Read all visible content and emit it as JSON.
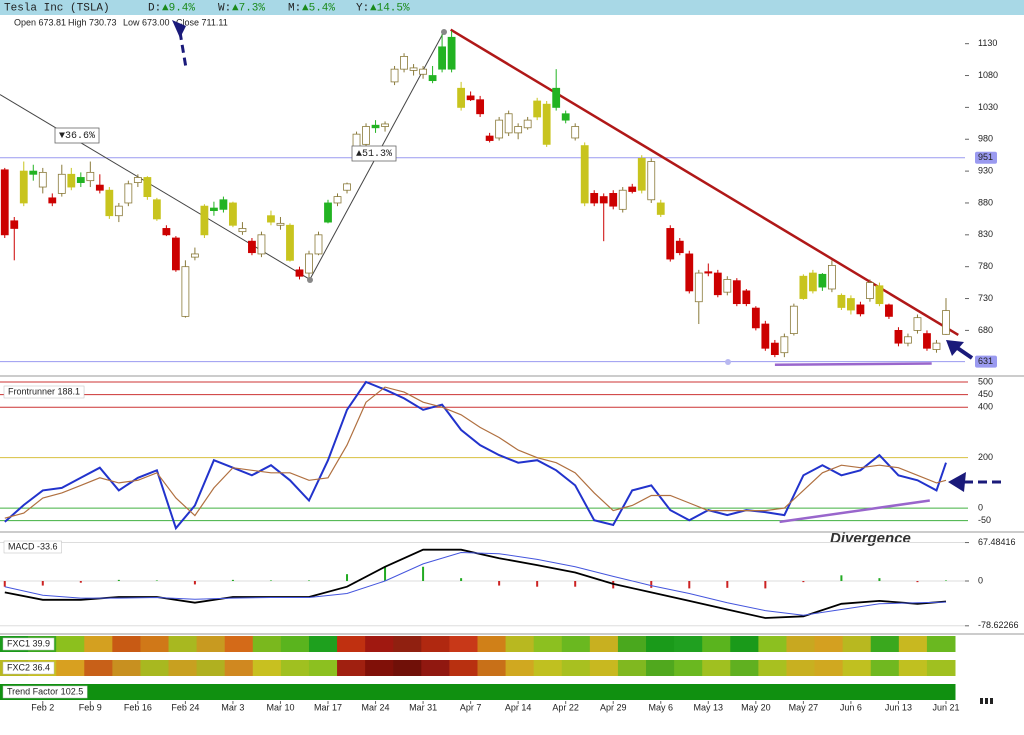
{
  "header": {
    "title": "Tesla Inc (TSLA)",
    "changes": [
      {
        "label": "D:",
        "value": "▲9.4%"
      },
      {
        "label": "W:",
        "value": "▲7.3%"
      },
      {
        "label": "M:",
        "value": "▲5.4%"
      },
      {
        "label": "Y:",
        "value": "▲14.5%"
      }
    ],
    "ohlc": [
      "Open 673.81",
      "High 730.73",
      "Low 673.00",
      "Close 711.11"
    ]
  },
  "chart_data": [
    {
      "type": "candlestick",
      "open": [
        932,
        852,
        880,
        925,
        905,
        888,
        895,
        905,
        912,
        915,
        908,
        900,
        860,
        880,
        912,
        920,
        885,
        840,
        825,
        780,
        795,
        830,
        868,
        870,
        880,
        840,
        820,
        800,
        850,
        845,
        845,
        775,
        770,
        800,
        850,
        880,
        900,
        960,
        972,
        998,
        1000,
        1070,
        1090,
        1088,
        1090,
        1080,
        1090,
        1140,
        1060,
        1048,
        1042,
        985,
        982,
        990,
        990,
        998,
        1015,
        1035,
        1060,
        1020,
        1000,
        970,
        895,
        890,
        895,
        870,
        898,
        950,
        945,
        880,
        840,
        820,
        800,
        725,
        770,
        770,
        740,
        758,
        742,
        715,
        690,
        660,
        645,
        675,
        730,
        742,
        768,
        745,
        735,
        730,
        720,
        730,
        750,
        720,
        680,
        660,
        680,
        675,
        650,
        673.81
      ],
      "high": [
        935,
        858,
        945,
        940,
        935,
        895,
        940,
        935,
        928,
        945,
        925,
        905,
        880,
        915,
        925,
        922,
        888,
        845,
        828,
        790,
        810,
        878,
        882,
        890,
        882,
        850,
        825,
        835,
        868,
        858,
        848,
        780,
        805,
        835,
        885,
        895,
        912,
        992,
        1005,
        1010,
        1008,
        1095,
        1115,
        1098,
        1095,
        1095,
        1145,
        1150,
        1070,
        1055,
        1048,
        990,
        1015,
        1025,
        1005,
        1015,
        1045,
        1040,
        1090,
        1025,
        1005,
        975,
        900,
        895,
        900,
        905,
        910,
        955,
        950,
        885,
        845,
        825,
        805,
        775,
        785,
        775,
        765,
        762,
        745,
        718,
        695,
        665,
        675,
        722,
        768,
        775,
        770,
        790,
        738,
        735,
        725,
        760,
        755,
        722,
        685,
        675,
        705,
        680,
        665,
        730.73
      ],
      "low": [
        825,
        790,
        875,
        915,
        895,
        875,
        890,
        900,
        905,
        905,
        895,
        855,
        850,
        875,
        905,
        885,
        852,
        828,
        772,
        700,
        790,
        825,
        860,
        865,
        842,
        830,
        798,
        795,
        845,
        838,
        788,
        760,
        760,
        798,
        848,
        875,
        895,
        955,
        968,
        990,
        992,
        1065,
        1085,
        1080,
        1075,
        1068,
        1085,
        1085,
        1025,
        1040,
        1015,
        975,
        978,
        985,
        980,
        995,
        1010,
        968,
        1025,
        1005,
        978,
        875,
        875,
        820,
        870,
        865,
        895,
        895,
        880,
        858,
        788,
        798,
        738,
        690,
        765,
        732,
        735,
        718,
        718,
        680,
        648,
        638,
        638,
        672,
        728,
        738,
        742,
        740,
        712,
        705,
        702,
        725,
        718,
        698,
        655,
        655,
        675,
        648,
        645,
        673.0
      ],
      "close": [
        830,
        840,
        930,
        930,
        928,
        880,
        925,
        925,
        920,
        928,
        900,
        860,
        875,
        910,
        920,
        890,
        855,
        830,
        775,
        702,
        800,
        875,
        872,
        885,
        845,
        835,
        802,
        830,
        860,
        848,
        790,
        765,
        800,
        830,
        880,
        890,
        910,
        988,
        1000,
        1002,
        1004,
        1090,
        1110,
        1092,
        1082,
        1072,
        1125,
        1090,
        1030,
        1042,
        1020,
        978,
        1010,
        1020,
        1000,
        1010,
        1040,
        972,
        1030,
        1010,
        982,
        880,
        880,
        880,
        875,
        900,
        905,
        900,
        885,
        862,
        792,
        802,
        742,
        770,
        772,
        736,
        760,
        722,
        722,
        684,
        652,
        642,
        670,
        718,
        765,
        770,
        748,
        782,
        716,
        712,
        706,
        755,
        722,
        702,
        660,
        670,
        700,
        652,
        660,
        711.11
      ],
      "colors": [
        "#cc0000",
        "#cc0000",
        "#c8c41e",
        "#22b322",
        "#ffffff",
        "#cc0000",
        "#ffffff",
        "#c8c41e",
        "#22b322",
        "#ffffff",
        "#cc0000",
        "#c8c41e",
        "#ffffff",
        "#ffffff",
        "#ffffff",
        "#c8c41e",
        "#c8c41e",
        "#cc0000",
        "#cc0000",
        "#ffffff",
        "#ffffff",
        "#c8c41e",
        "#22b322",
        "#22b322",
        "#c8c41e",
        "#ffffff",
        "#cc0000",
        "#ffffff",
        "#c8c41e",
        "#ffffff",
        "#c8c41e",
        "#cc0000",
        "#ffffff",
        "#ffffff",
        "#22b322",
        "#ffffff",
        "#ffffff",
        "#ffffff",
        "#ffffff",
        "#22b322",
        "#ffffff",
        "#ffffff",
        "#ffffff",
        "#ffffff",
        "#ffffff",
        "#22b322",
        "#22b322",
        "#22b322",
        "#c8c41e",
        "#cc0000",
        "#cc0000",
        "#cc0000",
        "#ffffff",
        "#ffffff",
        "#ffffff",
        "#ffffff",
        "#c8c41e",
        "#c8c41e",
        "#22b322",
        "#22b322",
        "#ffffff",
        "#c8c41e",
        "#cc0000",
        "#cc0000",
        "#cc0000",
        "#ffffff",
        "#cc0000",
        "#c8c41e",
        "#ffffff",
        "#c8c41e",
        "#cc0000",
        "#cc0000",
        "#cc0000",
        "#ffffff",
        "#cc0000",
        "#cc0000",
        "#ffffff",
        "#cc0000",
        "#cc0000",
        "#cc0000",
        "#cc0000",
        "#cc0000",
        "#ffffff",
        "#ffffff",
        "#c8c41e",
        "#c8c41e",
        "#22b322",
        "#ffffff",
        "#c8c41e",
        "#c8c41e",
        "#cc0000",
        "#ffffff",
        "#c8c41e",
        "#cc0000",
        "#cc0000",
        "#ffffff",
        "#ffffff",
        "#cc0000",
        "#ffffff",
        "#ffffff"
      ],
      "xlim": [
        -0.5,
        101
      ],
      "xticks": [
        {
          "value": 4,
          "label": "Feb 2"
        },
        {
          "value": 9,
          "label": "Feb 9"
        },
        {
          "value": 14,
          "label": "Feb 16"
        },
        {
          "value": 19,
          "label": "Feb 24"
        },
        {
          "value": 24,
          "label": "Mar 3"
        },
        {
          "value": 29,
          "label": "Mar 10"
        },
        {
          "value": 34,
          "label": "Mar 17"
        },
        {
          "value": 39,
          "label": "Mar 24"
        },
        {
          "value": 44,
          "label": "Mar 31"
        },
        {
          "value": 49,
          "label": "Apr 7"
        },
        {
          "value": 54,
          "label": "Apr 14"
        },
        {
          "value": 59,
          "label": "Apr 22"
        },
        {
          "value": 64,
          "label": "Apr 29"
        },
        {
          "value": 69,
          "label": "May 6"
        },
        {
          "value": 74,
          "label": "May 13"
        },
        {
          "value": 79,
          "label": "May 20"
        },
        {
          "value": 84,
          "label": "May 27"
        },
        {
          "value": 89,
          "label": "Jun 6"
        },
        {
          "value": 94,
          "label": "Jun 13"
        },
        {
          "value": 99,
          "label": "Jun 21"
        }
      ],
      "ylim": [
        610,
        1175
      ],
      "yticks": [
        1130,
        1080,
        1030,
        980,
        930,
        880,
        830,
        780,
        730,
        680
      ],
      "markers": [
        {
          "value": 951,
          "color": "#9a9af0"
        },
        {
          "value": 631,
          "color": "#9a9af0"
        }
      ],
      "lines": [
        {
          "color": "#b01818",
          "x": [
            46.9,
            100.3
          ],
          "y": [
            1152,
            673
          ]
        },
        {
          "color": "#444444",
          "x": [
            -0.5,
            32.1
          ],
          "y": [
            1050,
            760
          ]
        },
        {
          "color": "#444444",
          "x": [
            32.1,
            46.2
          ],
          "y": [
            760,
            1149
          ]
        },
        {
          "color": "#9966cc",
          "x": [
            81,
            97.5
          ],
          "y": [
            626,
            628
          ]
        }
      ],
      "annotations": [
        {
          "text": "▼36.6%",
          "color": "#cc2222"
        },
        {
          "text": "▲51.3%",
          "color": "#1a8a1a"
        }
      ]
    },
    {
      "type": "line",
      "title": "Frontrunner 188.1",
      "x": [
        0,
        2,
        4,
        6,
        8,
        10,
        12,
        14,
        16,
        18,
        20,
        22,
        24,
        26,
        28,
        30,
        32,
        34,
        36,
        38,
        40,
        42,
        44,
        46,
        48,
        50,
        52,
        54,
        56,
        58,
        60,
        62,
        64,
        66,
        68,
        70,
        72,
        74,
        76,
        78,
        80,
        82,
        84,
        86,
        88,
        90,
        92,
        94,
        96,
        98,
        99
      ],
      "series": [
        {
          "color": "#2233cc",
          "values": [
            -55,
            12,
            70,
            80,
            120,
            160,
            70,
            120,
            150,
            -80,
            10,
            190,
            160,
            130,
            170,
            110,
            30,
            190,
            390,
            500,
            470,
            435,
            390,
            410,
            310,
            250,
            210,
            180,
            190,
            150,
            90,
            -48,
            -67,
            70,
            90,
            -8,
            -48,
            -8,
            -28,
            -8,
            -16,
            -28,
            130,
            170,
            130,
            150,
            210,
            130,
            110,
            70,
            180
          ]
        },
        {
          "color": "#b07040",
          "values": [
            -40,
            -20,
            40,
            60,
            90,
            120,
            100,
            110,
            140,
            40,
            -30,
            80,
            160,
            150,
            140,
            140,
            110,
            120,
            250,
            420,
            480,
            460,
            420,
            400,
            370,
            320,
            280,
            230,
            200,
            180,
            140,
            60,
            -10,
            10,
            50,
            50,
            20,
            -10,
            -10,
            -10,
            -10,
            0,
            70,
            140,
            170,
            160,
            170,
            160,
            130,
            100,
            110
          ]
        }
      ],
      "xlim": [
        -0.5,
        101
      ],
      "ylim": [
        -87,
        516
      ],
      "yticks": [
        500,
        450,
        400,
        200,
        0,
        -50
      ],
      "level_colors": [
        "#cc3333",
        "#cc3333",
        "#cc3333",
        "#d8c040",
        "#40b040",
        "#40b040"
      ],
      "lines": [
        {
          "color": "#9966cc",
          "x": [
            81.5,
            97.3
          ],
          "y": [
            -55,
            30
          ]
        }
      ],
      "annotation": "Divergence"
    },
    {
      "type": "macd",
      "title": "MACD -33.6",
      "x": [
        0,
        4,
        8,
        12,
        16,
        20,
        24,
        28,
        32,
        36,
        40,
        44,
        48,
        52,
        56,
        60,
        64,
        68,
        72,
        76,
        80,
        84,
        88,
        92,
        96,
        99
      ],
      "series": [
        {
          "color": "#000000",
          "values": [
            -20,
            -33,
            -33,
            -28,
            -28,
            -38,
            -28,
            -28,
            -28,
            -10,
            25,
            55,
            55,
            40,
            28,
            15,
            -5,
            -20,
            -35,
            -50,
            -65,
            -62,
            -40,
            -35,
            -40,
            -36
          ]
        },
        {
          "color": "#4455dd",
          "values": [
            -10,
            -25,
            -30,
            -30,
            -29,
            -32,
            -30,
            -29,
            -29,
            -22,
            0,
            30,
            50,
            48,
            38,
            25,
            8,
            -8,
            -22,
            -38,
            -52,
            -60,
            -50,
            -40,
            -38,
            -37
          ]
        }
      ],
      "histogram": {
        "values": [
          -10,
          -8,
          -3,
          2,
          1,
          -6,
          2,
          1,
          1,
          12,
          25,
          25,
          5,
          -8,
          -10,
          -10,
          -13,
          -12,
          -13,
          -12,
          -13,
          -2,
          10,
          5,
          -2,
          1
        ],
        "colors": [
          "#22aa22",
          "#cc2222"
        ]
      },
      "xlim": [
        -0.5,
        101
      ],
      "ylim": [
        -89.5,
        82.5
      ],
      "yticks": [
        67.48416,
        0,
        -78.62266
      ]
    },
    {
      "type": "heatstrip",
      "title": "FXC1 39.9",
      "colors": [
        "#1a9a1a",
        "#3aa81e",
        "#8cc01e",
        "#d4a020",
        "#c85a14",
        "#d07818",
        "#a8b820",
        "#c89a20",
        "#d46a18",
        "#7ab81e",
        "#5ab41e",
        "#1ea01e",
        "#c03010",
        "#a01810",
        "#902010",
        "#b02810",
        "#c83818",
        "#d08018",
        "#b8b820",
        "#8cc020",
        "#6ab820",
        "#c8b020",
        "#4aa81e",
        "#1a9a1a",
        "#20a020",
        "#5ab41e",
        "#1a9a1a",
        "#8cc020",
        "#c8a820",
        "#d4a020",
        "#b8b820",
        "#3aa81e",
        "#c8b820",
        "#6ab820"
      ]
    },
    {
      "type": "heatstrip",
      "title": "FXC2 36.4",
      "colors": [
        "#b8b820",
        "#c8c020",
        "#d8a020",
        "#c86018",
        "#c89020",
        "#a8b820",
        "#c8a020",
        "#b0b020",
        "#d08820",
        "#c8c020",
        "#a0c020",
        "#8cc020",
        "#a02010",
        "#801008",
        "#701008",
        "#901810",
        "#b83010",
        "#c87018",
        "#d0a820",
        "#c0c020",
        "#a8c020",
        "#c8b820",
        "#80b820",
        "#50a81e",
        "#6ab820",
        "#a0c020",
        "#60b020",
        "#a8c020",
        "#c8b020",
        "#d0a820",
        "#c0c020",
        "#70b820",
        "#c0c020",
        "#a0c020"
      ]
    },
    {
      "type": "heatstrip",
      "title": "Trend Factor 102.5",
      "colors": [
        "#109010"
      ]
    }
  ]
}
